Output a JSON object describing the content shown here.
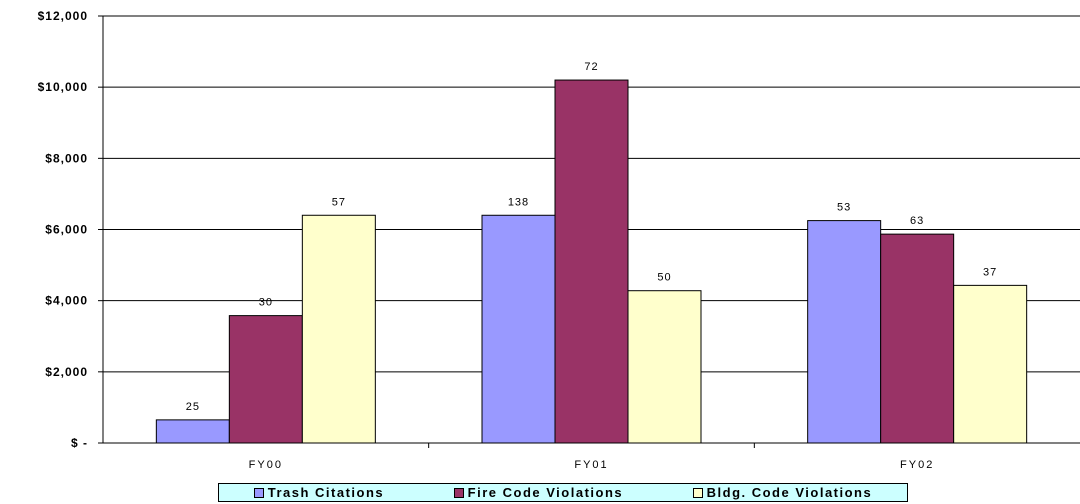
{
  "chart_data": {
    "type": "bar",
    "categories": [
      "FY00",
      "FY01",
      "FY02"
    ],
    "series": [
      {
        "name": "Trash Citations",
        "values": [
          650,
          6400,
          6250
        ],
        "labels": [
          "25",
          "138",
          "53"
        ],
        "color": "#9999ff"
      },
      {
        "name": "Fire Code Violations",
        "values": [
          3580,
          10200,
          5870
        ],
        "labels": [
          "30",
          "72",
          "63"
        ],
        "color": "#993366"
      },
      {
        "name": "Bldg. Code Violations",
        "values": [
          6400,
          4280,
          4430
        ],
        "labels": [
          "57",
          "50",
          "37"
        ],
        "color": "#ffffcc"
      }
    ],
    "y_ticks": [
      {
        "value": 0,
        "label": "$ -"
      },
      {
        "value": 2000,
        "label": "$2,000"
      },
      {
        "value": 4000,
        "label": "$4,000"
      },
      {
        "value": 6000,
        "label": "$6,000"
      },
      {
        "value": 8000,
        "label": "$8,000"
      },
      {
        "value": 10000,
        "label": "$10,000"
      },
      {
        "value": 12000,
        "label": "$12,000"
      }
    ],
    "ylim": [
      0,
      12000
    ],
    "grid": true,
    "legend_position": "bottom"
  }
}
